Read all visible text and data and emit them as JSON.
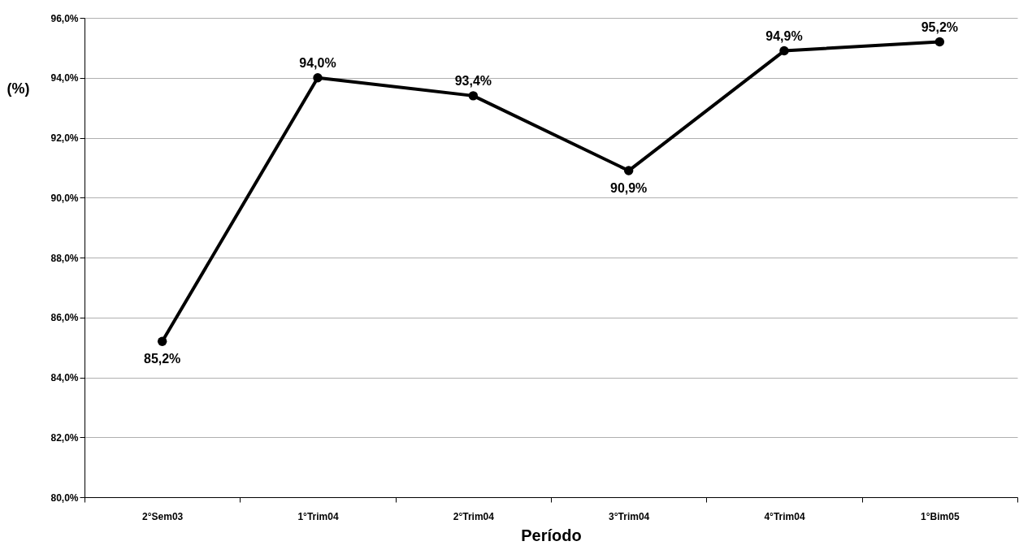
{
  "chart_data": {
    "type": "line",
    "xlabel": "Período",
    "ylabel": "(%)",
    "categories": [
      "2°Sem03",
      "1°Trim04",
      "2°Trim04",
      "3°Trim04",
      "4°Trim04",
      "1°Bim05"
    ],
    "series": [
      {
        "color": "#000000",
        "values": [
          85.2,
          94.0,
          93.4,
          90.9,
          94.9,
          95.2
        ],
        "value_labels": [
          "85,2%",
          "94,0%",
          "93,4%",
          "90,9%",
          "94,9%",
          "95,2%"
        ]
      }
    ],
    "ylim": [
      80,
      96
    ],
    "yticks": [
      {
        "value": 80,
        "label": "80,0%"
      },
      {
        "value": 82,
        "label": "82,0%"
      },
      {
        "value": 84,
        "label": "84,0%"
      },
      {
        "value": 86,
        "label": "86,0%"
      },
      {
        "value": 88,
        "label": "88,0%"
      },
      {
        "value": 90,
        "label": "90,0%"
      },
      {
        "value": 92,
        "label": "92,0%"
      },
      {
        "value": 94,
        "label": "94,0%"
      },
      {
        "value": 96,
        "label": "96,0%"
      }
    ],
    "grid": "y",
    "marker": "circle",
    "line_style": "solid"
  }
}
